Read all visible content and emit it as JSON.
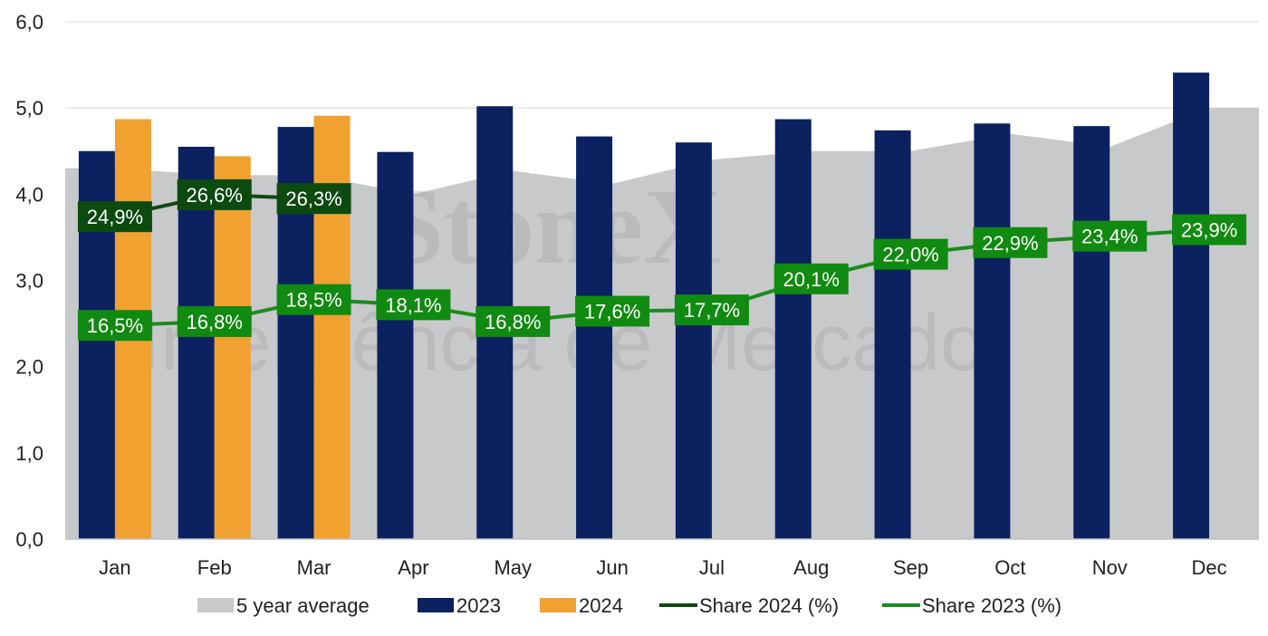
{
  "chart_data": {
    "type": "bar",
    "categories": [
      "Jan",
      "Feb",
      "Mar",
      "Apr",
      "May",
      "Jun",
      "Jul",
      "Aug",
      "Sep",
      "Oct",
      "Nov",
      "Dec"
    ],
    "ylim": [
      0,
      6
    ],
    "yticks": [
      "0,0",
      "1,0",
      "2,0",
      "3,0",
      "4,0",
      "5,0",
      "6,0"
    ],
    "area": {
      "name": "5 year average",
      "values": [
        4.3,
        4.22,
        4.22,
        4.0,
        4.27,
        4.12,
        4.4,
        4.5,
        4.5,
        4.7,
        4.55,
        5.0
      ],
      "color": "#c8c9cb"
    },
    "bars": [
      {
        "name": "2023",
        "color": "#0b2160",
        "values": [
          4.5,
          4.55,
          4.78,
          4.49,
          5.02,
          4.67,
          4.6,
          4.87,
          4.74,
          4.82,
          4.79,
          5.41
        ]
      },
      {
        "name": "2024",
        "color": "#f0a130",
        "values": [
          4.87,
          4.44,
          4.91,
          null,
          null,
          null,
          null,
          null,
          null,
          null,
          null,
          null
        ]
      }
    ],
    "lines": [
      {
        "name": "Share 2024 (%)",
        "color": "#0c4a10",
        "labelColor": "#0c4a10",
        "pct": [
          24.9,
          26.6,
          26.3,
          null,
          null,
          null,
          null,
          null,
          null,
          null,
          null,
          null
        ],
        "labels": [
          "24,9%",
          "26,6%",
          "26,3%",
          "",
          "",
          "",
          "",
          "",
          "",
          "",
          "",
          ""
        ]
      },
      {
        "name": "Share 2023 (%)",
        "color": "#1b8a1f",
        "labelColor": "#108a10",
        "pct": [
          16.5,
          16.8,
          18.5,
          18.1,
          16.8,
          17.6,
          17.7,
          20.1,
          22.0,
          22.9,
          23.4,
          23.9
        ],
        "labels": [
          "16,5%",
          "16,8%",
          "18,5%",
          "18,1%",
          "16,8%",
          "17,6%",
          "17,7%",
          "20,1%",
          "22,0%",
          "22,9%",
          "23,4%",
          "23,9%"
        ]
      }
    ],
    "legend": [
      "5 year average",
      "2023",
      "2024",
      "Share 2024 (%)",
      "Share 2023 (%)"
    ],
    "legend_position": "bottom",
    "grid": true
  },
  "watermark": {
    "brand": "StoneX",
    "subtitle": "Inteligência de Mercado"
  }
}
